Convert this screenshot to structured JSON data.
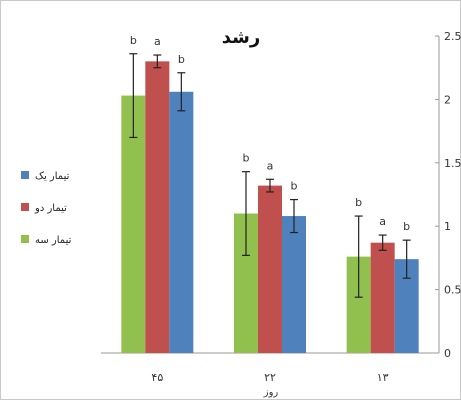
{
  "chart_data": {
    "type": "bar",
    "title": "رشد",
    "xlabel": "روز",
    "ylabel": "",
    "categories": [
      "۴۵",
      "۲۲",
      "۱۳"
    ],
    "ylim": [
      0,
      2.5
    ],
    "yticks": [
      "0",
      "0.5",
      "1",
      "1.5",
      "2",
      "2.5"
    ],
    "ytick_values": [
      0,
      0.5,
      1,
      1.5,
      2,
      2.5
    ],
    "grid": false,
    "legend_position": "left",
    "series": [
      {
        "name": "تیمار سه",
        "color": "#92c04e",
        "values": [
          2.03,
          1.1,
          0.76
        ],
        "errors": [
          0.33,
          0.33,
          0.32
        ],
        "letters": [
          "b",
          "b",
          "b"
        ]
      },
      {
        "name": "تیمار دو",
        "color": "#c0504d",
        "values": [
          2.3,
          1.32,
          0.87
        ],
        "errors": [
          0.05,
          0.05,
          0.06
        ],
        "letters": [
          "a",
          "a",
          "a"
        ]
      },
      {
        "name": "تیمار یک",
        "color": "#4f81bd",
        "values": [
          2.06,
          1.08,
          0.74
        ],
        "errors": [
          0.15,
          0.13,
          0.15
        ],
        "letters": [
          "b",
          "b",
          "b"
        ]
      }
    ],
    "legend_order": [
      2,
      1,
      0
    ]
  }
}
